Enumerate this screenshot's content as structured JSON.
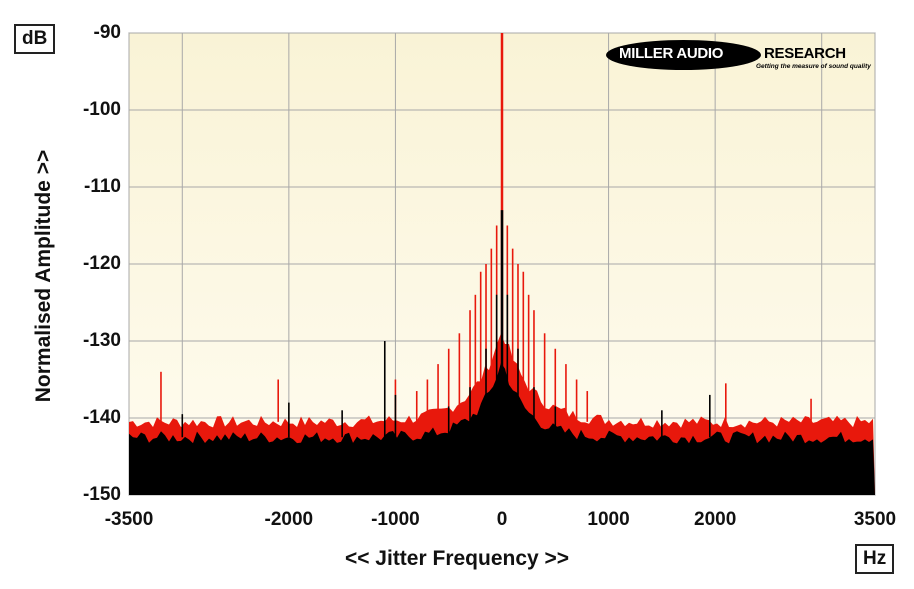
{
  "chart_data": {
    "type": "line",
    "title": "",
    "xlabel": "<< Jitter Frequency >>",
    "ylabel": "Normalised Amplitude >>",
    "x_unit": "Hz",
    "y_unit": "dB",
    "xlim": [
      -3500,
      3500
    ],
    "ylim": [
      -150,
      -90
    ],
    "x_ticks": [
      "-3500",
      "-2000",
      "-1000",
      "0",
      "1000",
      "2000",
      "3500"
    ],
    "x_grid": [
      -3500,
      -3000,
      -2000,
      -1000,
      0,
      1000,
      2000,
      3000,
      3500
    ],
    "y_ticks": [
      "-90",
      "-100",
      "-110",
      "-120",
      "-130",
      "-140",
      "-150"
    ],
    "grid": true,
    "series": [
      {
        "color": "#e8180c",
        "noise_floor_db": -140.5,
        "points": [
          {
            "x": 0,
            "y": -90
          },
          {
            "x": -50,
            "y": -115
          },
          {
            "x": 50,
            "y": -115
          },
          {
            "x": -100,
            "y": -118
          },
          {
            "x": 100,
            "y": -118
          },
          {
            "x": -150,
            "y": -120
          },
          {
            "x": 150,
            "y": -120
          },
          {
            "x": -200,
            "y": -121
          },
          {
            "x": 200,
            "y": -121
          },
          {
            "x": -250,
            "y": -124
          },
          {
            "x": 250,
            "y": -124
          },
          {
            "x": -300,
            "y": -126
          },
          {
            "x": 300,
            "y": -126
          },
          {
            "x": -400,
            "y": -129
          },
          {
            "x": 400,
            "y": -129
          },
          {
            "x": -500,
            "y": -131
          },
          {
            "x": 500,
            "y": -131
          },
          {
            "x": -600,
            "y": -133
          },
          {
            "x": 600,
            "y": -133
          },
          {
            "x": -700,
            "y": -135
          },
          {
            "x": 700,
            "y": -135
          },
          {
            "x": -800,
            "y": -136.5
          },
          {
            "x": 800,
            "y": -136.5
          },
          {
            "x": -1000,
            "y": -135
          },
          {
            "x": 2100,
            "y": -135.5
          },
          {
            "x": -2100,
            "y": -135
          },
          {
            "x": -3200,
            "y": -134
          },
          {
            "x": 2900,
            "y": -137.5
          },
          {
            "x": -3500,
            "y": -140.5
          },
          {
            "x": 3500,
            "y": -140.5
          }
        ]
      },
      {
        "color": "#000000",
        "noise_floor_db": -142.5,
        "points": [
          {
            "x": 0,
            "y": -113
          },
          {
            "x": -50,
            "y": -124
          },
          {
            "x": 50,
            "y": -124
          },
          {
            "x": -150,
            "y": -131
          },
          {
            "x": 150,
            "y": -131
          },
          {
            "x": -300,
            "y": -136
          },
          {
            "x": 300,
            "y": -136
          },
          {
            "x": -500,
            "y": -138.5
          },
          {
            "x": 500,
            "y": -138.5
          },
          {
            "x": -1100,
            "y": -130
          },
          {
            "x": -1000,
            "y": -137
          },
          {
            "x": 1950,
            "y": -137
          },
          {
            "x": -3000,
            "y": -139.5
          },
          {
            "x": -2000,
            "y": -138
          },
          {
            "x": -1500,
            "y": -139
          },
          {
            "x": 1500,
            "y": -139
          },
          {
            "x": -3500,
            "y": -142.5
          },
          {
            "x": 3500,
            "y": -142.5
          }
        ]
      }
    ]
  },
  "branding": {
    "logo_dark": "MILLER AUDIO",
    "logo_light": "RESEARCH",
    "tagline": "Getting the measure of sound quality"
  }
}
